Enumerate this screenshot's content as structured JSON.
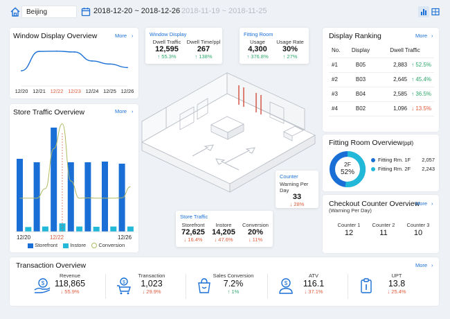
{
  "topbar": {
    "city": "Beijing",
    "date_range": "2018-12-20 ~ 2018-12-26",
    "compare_range": "2018-11-19 ~ 2018-11-25"
  },
  "window_overview": {
    "title": "Window Display Overview",
    "more": "More",
    "x_labels": [
      "12/20",
      "12/21",
      "12/22",
      "12/23",
      "12/24",
      "12/25",
      "12/26"
    ],
    "values": [
      95,
      260,
      262,
      255,
      178,
      152,
      122
    ],
    "ylim": [
      0,
      320
    ]
  },
  "store_traffic_overview": {
    "title": "Store Traffic Overview",
    "more": "More",
    "x_first": "12/20",
    "x_mid": "12/22",
    "x_last": "12/26",
    "legend": [
      "Storefront",
      "Instore",
      "Conversion"
    ],
    "storefront": [
      210,
      205,
      200,
      210,
      300,
      200,
      200,
      202,
      200,
      202,
      202,
      198,
      196,
      198
    ],
    "instore": [
      40,
      38,
      40,
      42,
      50,
      68,
      122,
      42,
      38,
      40,
      40,
      42,
      40,
      42
    ],
    "conversion": [
      15,
      15,
      15,
      40,
      145,
      210,
      60,
      15,
      16,
      15,
      15,
      15,
      16,
      45
    ]
  },
  "window_display": {
    "title": "Window Display",
    "dwell_traffic_label": "Dwell Traffic",
    "dwell_traffic_value": "12,595",
    "dwell_traffic_change": "↑ 55.3%",
    "dwell_time_label": "Dwell Time/ppl",
    "dwell_time_value": "267",
    "dwell_time_change": "↑ 138%"
  },
  "fitting_room": {
    "title": "Fitting Room",
    "usage_label": "Usage",
    "usage_value": "4,300",
    "usage_change": "↑ 376.8%",
    "rate_label": "Usage Rate",
    "rate_value": "30%",
    "rate_change": "↑ 27%"
  },
  "counter": {
    "title": "Counter",
    "label": "Warning Per Day",
    "value": "33",
    "change": "↓ 28%"
  },
  "store_traffic": {
    "title": "Store Traffic",
    "storefront_label": "Storefront",
    "storefront_value": "72,625",
    "storefront_change": "↓ 16.4%",
    "instore_label": "Instore",
    "instore_value": "14,205",
    "instore_change": "↓ 47.6%",
    "conv_label": "Conversion",
    "conv_value": "20%",
    "conv_change": "↓ 11%"
  },
  "display_ranking": {
    "title": "Display Ranking",
    "more": "More",
    "headers": [
      "No.",
      "Display",
      "Dwell Traffic"
    ],
    "rows": [
      {
        "no": "#1",
        "display": "B05",
        "traffic": "2,883",
        "change": "↑ 52.5%",
        "dir": "up"
      },
      {
        "no": "#2",
        "display": "B03",
        "traffic": "2,645",
        "change": "↑ 45.4%",
        "dir": "up"
      },
      {
        "no": "#3",
        "display": "B04",
        "traffic": "2,585",
        "change": "↑ 36.5%",
        "dir": "up"
      },
      {
        "no": "#4",
        "display": "B02",
        "traffic": "1,096",
        "change": "↓ 13.5%",
        "dir": "down"
      }
    ]
  },
  "fitting_overview": {
    "title": "Fitting Room Overview",
    "unit": "(ppl)",
    "donut_label": "2F",
    "donut_pct": "52%",
    "share_2f": 0.52,
    "items": [
      {
        "label": "Fitting Rm. 1F",
        "value": "2,057",
        "color": "#1a6fd6"
      },
      {
        "label": "Fitting Rm. 2F",
        "value": "2,243",
        "color": "#22b8d8"
      }
    ]
  },
  "checkout": {
    "title": "Checkout Counter Overview",
    "subtitle": "(Warning Per Day)",
    "more": "More",
    "counters": [
      {
        "label": "Counter 1",
        "value": "12"
      },
      {
        "label": "Counter 2",
        "value": "11"
      },
      {
        "label": "Counter 3",
        "value": "10"
      }
    ]
  },
  "transaction": {
    "title": "Transaction Overview",
    "more": "More",
    "metrics": [
      {
        "label": "Revenue",
        "value": "118,865",
        "change": "↓ 55.9%",
        "dir": "down",
        "icon": "revenue-hand-icon"
      },
      {
        "label": "Transaction",
        "value": "1,023",
        "change": "↓ 29.9%",
        "dir": "down",
        "icon": "cart-icon"
      },
      {
        "label": "Sales Conversion",
        "value": "7.2%",
        "change": "↑ 1%",
        "dir": "up",
        "icon": "bag-icon"
      },
      {
        "label": "ATV",
        "value": "116.1",
        "change": "↓ 37.1%",
        "dir": "down",
        "icon": "person-coin-icon"
      },
      {
        "label": "UPT",
        "value": "13.8",
        "change": "↓ 25.4%",
        "dir": "down",
        "icon": "clipboard-icon"
      }
    ]
  },
  "colors": {
    "accent": "#1a6fd6",
    "cyan": "#22b8d8",
    "olive": "#b0b860",
    "up": "#2da86a",
    "down": "#e05a3a"
  }
}
